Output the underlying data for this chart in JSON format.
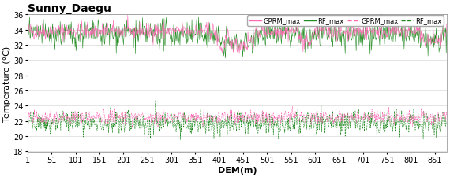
{
  "title": "Sunny_Daegu",
  "xlabel": "DEM(m)",
  "ylabel": "Temperature (°C)",
  "n_points": 876,
  "x_ticks": [
    1,
    51,
    101,
    151,
    201,
    251,
    301,
    351,
    401,
    451,
    501,
    551,
    601,
    651,
    701,
    751,
    801,
    851
  ],
  "ylim": [
    18,
    36
  ],
  "yticks": [
    18,
    20,
    22,
    24,
    26,
    28,
    30,
    32,
    34,
    36
  ],
  "upper_base_gprm": 33.8,
  "upper_base_rf": 33.4,
  "lower_base_gprm": 22.5,
  "lower_base_rf": 21.8,
  "upper_noise_gprm": 0.55,
  "upper_noise_rf": 0.9,
  "lower_noise_gprm": 0.45,
  "lower_noise_rf": 0.75,
  "color_gprm": "#FF69B4",
  "color_rf": "#228B22",
  "linewidth": 0.4,
  "legend_labels": [
    "GPRM_max",
    "RF_max",
    "GPRM_max",
    "RF_max"
  ],
  "legend_styles": [
    "solid",
    "solid",
    "dashed",
    "dashed"
  ],
  "legend_colors": [
    "#FF69B4",
    "#228B22",
    "#FF69B4",
    "#228B22"
  ],
  "background_color": "#FFFFFF",
  "title_fontsize": 10,
  "axis_fontsize": 8,
  "tick_fontsize": 7
}
